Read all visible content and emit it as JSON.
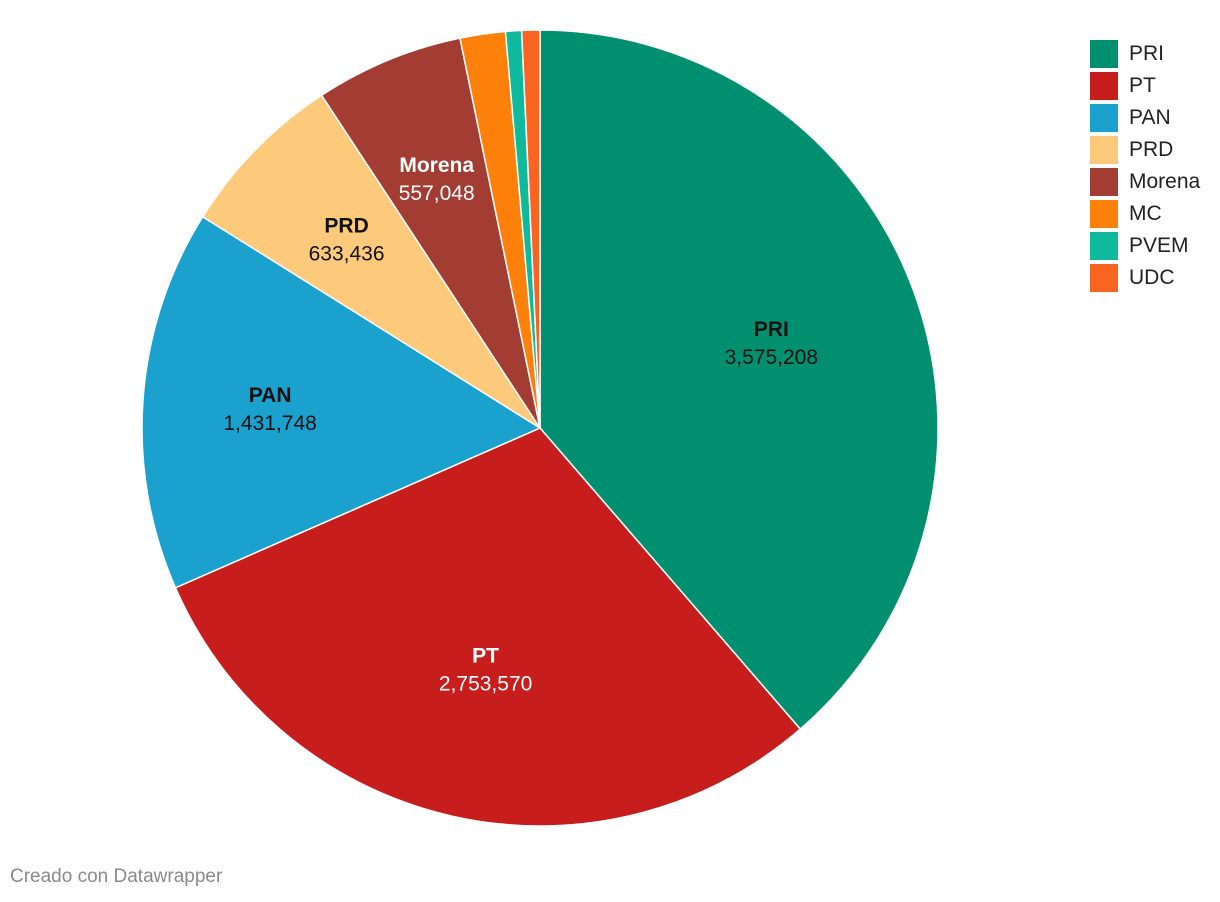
{
  "chart_data": {
    "type": "pie",
    "categories": [
      "PRI",
      "PT",
      "PAN",
      "PRD",
      "Morena",
      "MC",
      "PVEM",
      "UDC"
    ],
    "values": [
      3575208,
      2753570,
      1431748,
      633436,
      557048,
      170000,
      60000,
      68000
    ],
    "value_labels": [
      "3,575,208",
      "2,753,570",
      "1,431,748",
      "633,436",
      "557,048",
      "",
      "",
      ""
    ],
    "colors": [
      "#00906f",
      "#c71e1d",
      "#1ba1cd",
      "#fdc97a",
      "#a33c32",
      "#fc8009",
      "#0fb99b",
      "#f96421"
    ],
    "label_colors": [
      "#111111",
      "#ffffff",
      "#111111",
      "#111111",
      "#ffffff",
      "",
      "",
      ""
    ],
    "start_angle_deg": 0,
    "direction": "clockwise",
    "legend_position": "top-right"
  },
  "legend": {
    "items": [
      {
        "label": "PRI",
        "color": "#00906f"
      },
      {
        "label": "PT",
        "color": "#c71e1d"
      },
      {
        "label": "PAN",
        "color": "#1ba1cd"
      },
      {
        "label": "PRD",
        "color": "#fdc97a"
      },
      {
        "label": "Morena",
        "color": "#a33c32"
      },
      {
        "label": "MC",
        "color": "#fc8009"
      },
      {
        "label": "PVEM",
        "color": "#0fb99b"
      },
      {
        "label": "UDC",
        "color": "#f96421"
      }
    ]
  },
  "footer": {
    "credit": "Creado con Datawrapper"
  }
}
